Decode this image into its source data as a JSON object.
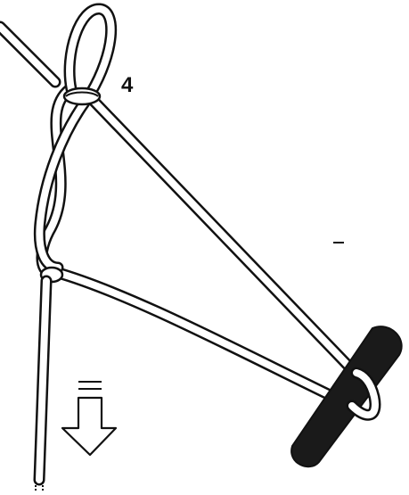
{
  "diagram": {
    "step_number": "4",
    "rope_color": "#ffffff",
    "line_color": "#111111",
    "toggle_color": "#1a1a1a",
    "arrow_direction": "down",
    "arrow_icon": "pull-down-arrow-icon"
  }
}
